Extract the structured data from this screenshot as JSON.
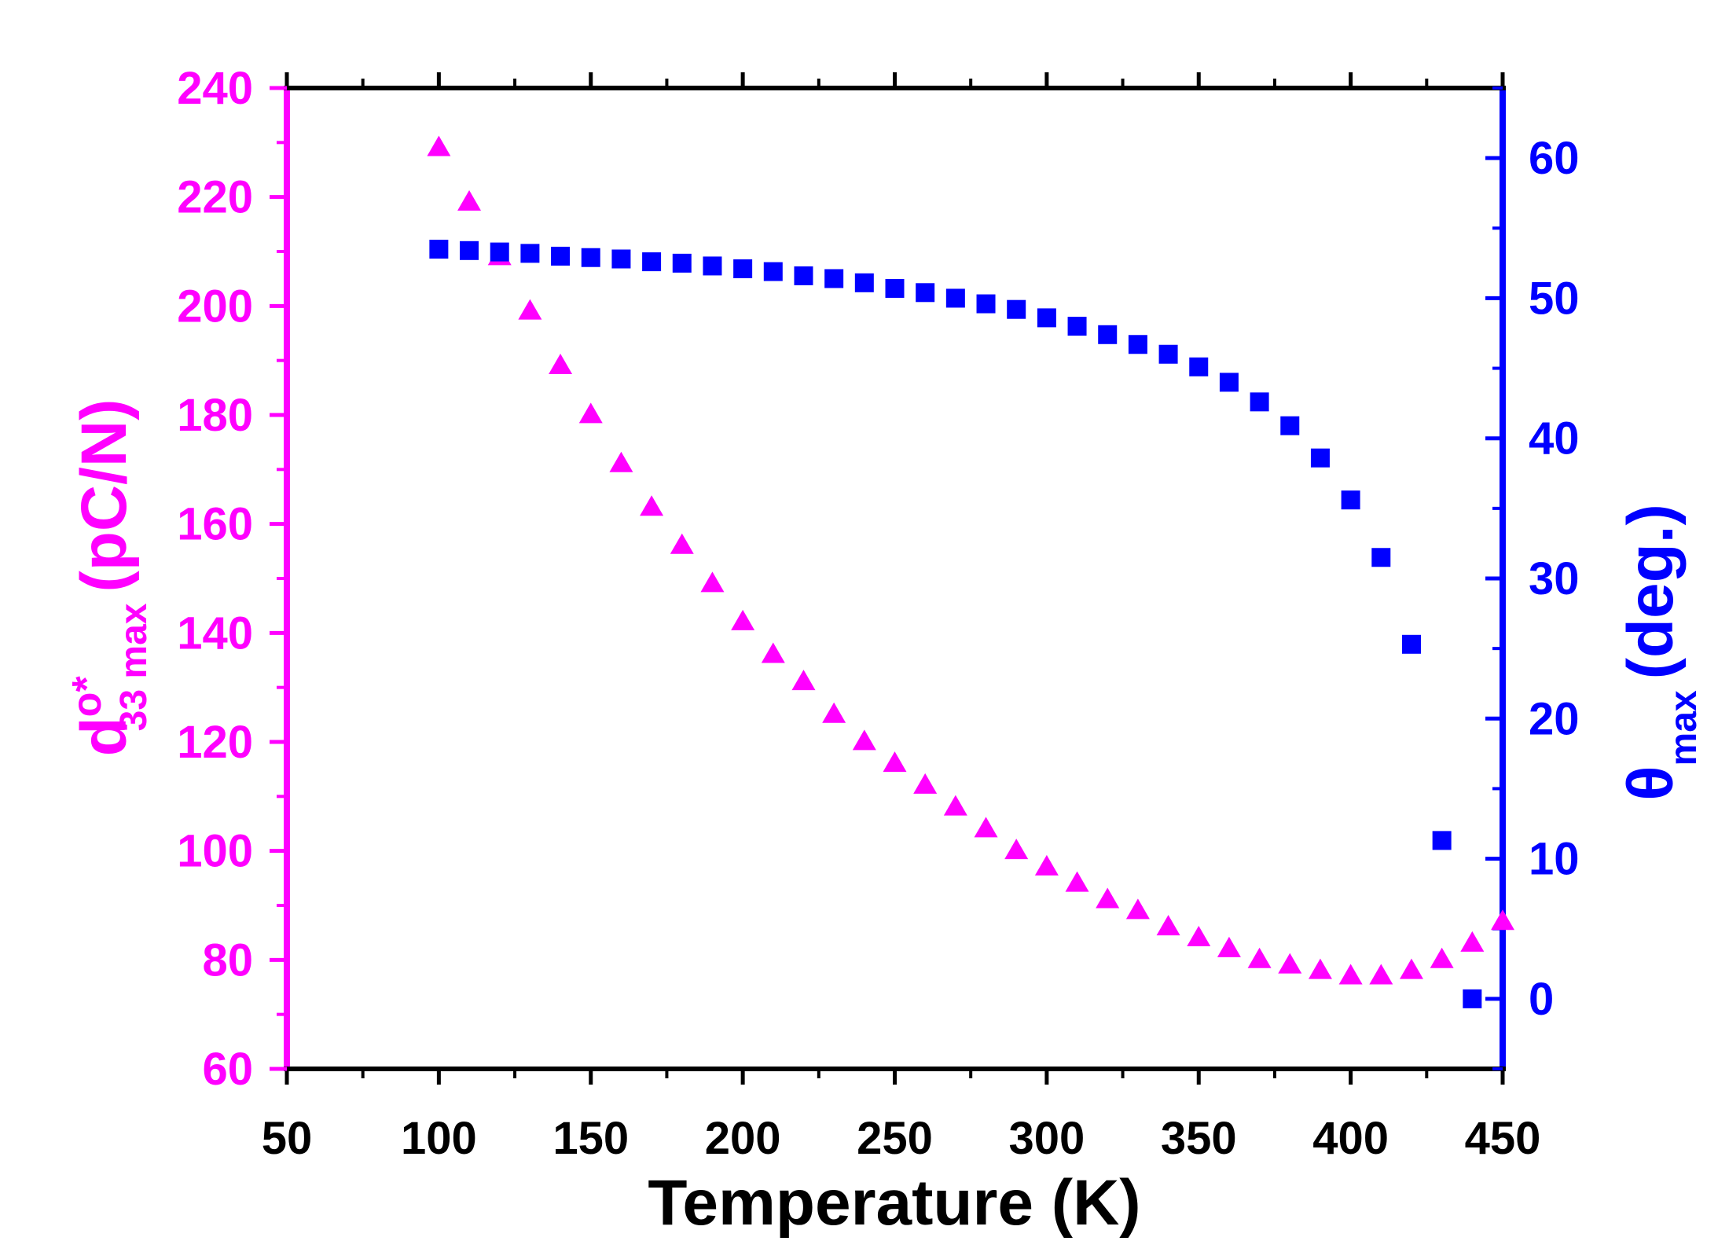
{
  "chart_data": {
    "type": "scatter",
    "xlabel": "Temperature (K)",
    "x_ticks": [
      "50",
      "100",
      "150",
      "200",
      "250",
      "300",
      "350",
      "400",
      "450"
    ],
    "xlim": [
      50,
      450
    ],
    "ylabel_left": {
      "main": "d",
      "superscript": "o*",
      "subscript": "33 max",
      "unit": "(pC/N)"
    },
    "ylim_left": [
      60,
      240
    ],
    "y_ticks_left": [
      "60",
      "80",
      "100",
      "120",
      "140",
      "160",
      "180",
      "200",
      "220",
      "240"
    ],
    "ylabel_right": {
      "main": "θ",
      "subscript": "max",
      "unit": "(deg.)"
    },
    "ylim_right": [
      -5,
      65
    ],
    "y_ticks_right": [
      "0",
      "10",
      "20",
      "30",
      "40",
      "50",
      "60"
    ],
    "colors": {
      "left_axis": "#ff00ff",
      "right_axis": "#0000ff",
      "axis_frame": "#000000"
    },
    "series": [
      {
        "marker": "triangle",
        "axis": "left",
        "color": "#ff00ff",
        "x": [
          100,
          110,
          120,
          130,
          140,
          150,
          160,
          170,
          180,
          190,
          200,
          210,
          220,
          230,
          240,
          250,
          260,
          270,
          280,
          290,
          300,
          310,
          320,
          330,
          340,
          350,
          360,
          370,
          380,
          390,
          400,
          410,
          420,
          430,
          440,
          450
        ],
        "y": [
          229,
          219,
          209,
          199,
          189,
          180,
          171,
          163,
          156,
          149,
          142,
          136,
          131,
          125,
          120,
          116,
          112,
          108,
          104,
          100,
          97,
          94,
          91,
          89,
          86,
          84,
          82,
          80,
          79,
          78,
          77,
          77,
          78,
          80,
          83,
          87
        ]
      },
      {
        "marker": "square",
        "axis": "right",
        "color": "#0000ff",
        "x": [
          100,
          110,
          120,
          130,
          140,
          150,
          160,
          170,
          180,
          190,
          200,
          210,
          220,
          230,
          240,
          250,
          260,
          270,
          280,
          290,
          300,
          310,
          320,
          330,
          340,
          350,
          360,
          370,
          380,
          390,
          400,
          410,
          420,
          430,
          440
        ],
        "y": [
          53.5,
          53.4,
          53.3,
          53.2,
          53.0,
          52.9,
          52.8,
          52.6,
          52.5,
          52.3,
          52.1,
          51.9,
          51.6,
          51.4,
          51.1,
          50.7,
          50.4,
          50.0,
          49.6,
          49.2,
          48.6,
          48.0,
          47.4,
          46.7,
          46.0,
          45.1,
          44.0,
          42.6,
          40.9,
          38.6,
          35.6,
          31.5,
          25.3,
          11.3,
          0
        ]
      }
    ]
  }
}
